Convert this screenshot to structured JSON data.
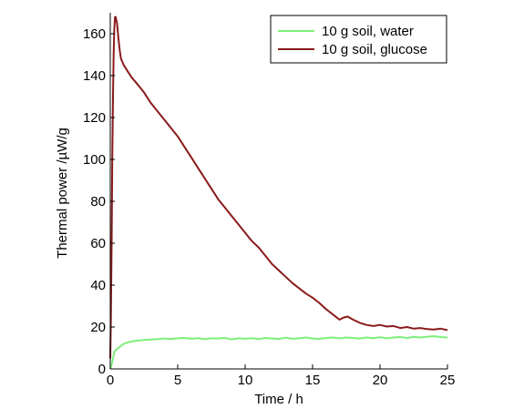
{
  "chart_data": {
    "type": "line",
    "xlabel": "Time / h",
    "ylabel": "Thermal power /µW/g",
    "xlim": [
      0,
      25
    ],
    "ylim": [
      0,
      170
    ],
    "xticks": [
      0,
      5,
      10,
      15,
      20,
      25
    ],
    "yticks": [
      0,
      20,
      40,
      60,
      80,
      100,
      120,
      140,
      160
    ],
    "xtick_labels": [
      "0",
      "5",
      "10",
      "15",
      "20",
      "25"
    ],
    "ytick_labels": [
      "0",
      "20",
      "40",
      "60",
      "80",
      "100",
      "120",
      "140",
      "160"
    ],
    "grid": false,
    "legend_position": "top-right",
    "legend": [
      "10 g soil, water",
      "10 g soil, glucose"
    ],
    "series": [
      {
        "name": "10 g soil, water",
        "color": "#7ef07a",
        "x": [
          0.0,
          0.1,
          0.2,
          0.3,
          0.4,
          0.6,
          0.8,
          1.0,
          1.5,
          2.0,
          2.5,
          3.0,
          3.5,
          4.0,
          4.5,
          5.0,
          5.5,
          6.0,
          6.5,
          7.0,
          7.5,
          8.0,
          8.5,
          9.0,
          9.5,
          10.0,
          10.5,
          11.0,
          11.5,
          12.0,
          12.5,
          13.0,
          13.5,
          14.0,
          14.5,
          15.0,
          15.5,
          16.0,
          16.5,
          17.0,
          17.5,
          18.0,
          18.5,
          19.0,
          19.5,
          20.0,
          20.5,
          21.0,
          21.5,
          22.0,
          22.5,
          23.0,
          23.5,
          24.0,
          24.5,
          25.0
        ],
        "y": [
          0,
          2,
          5,
          8,
          9,
          10,
          11,
          12,
          13,
          13.5,
          13.8,
          14,
          14.2,
          14.5,
          14.3,
          14.6,
          14.8,
          14.4,
          14.7,
          14.2,
          14.6,
          14.5,
          14.8,
          14.1,
          14.6,
          14.4,
          14.7,
          14.2,
          14.8,
          14.5,
          14.3,
          14.9,
          14.4,
          14.6,
          15.0,
          14.5,
          14.3,
          14.8,
          15.0,
          14.6,
          15.0,
          14.8,
          14.5,
          15.0,
          14.7,
          15.1,
          14.6,
          15.0,
          15.2,
          14.8,
          15.3,
          15.0,
          15.4,
          15.6,
          15.2,
          15.0
        ]
      },
      {
        "name": "10 g soil, glucose",
        "color": "#8b1a1a",
        "x": [
          0.0,
          0.05,
          0.1,
          0.15,
          0.2,
          0.25,
          0.3,
          0.35,
          0.4,
          0.5,
          0.6,
          0.7,
          0.8,
          1.0,
          1.3,
          1.6,
          2.0,
          2.5,
          3.0,
          3.5,
          4.0,
          4.5,
          5.0,
          5.5,
          6.0,
          6.5,
          7.0,
          7.5,
          8.0,
          8.5,
          9.0,
          9.5,
          10.0,
          10.5,
          11.0,
          11.5,
          12.0,
          12.5,
          13.0,
          13.5,
          14.0,
          14.5,
          15.0,
          15.5,
          16.0,
          16.5,
          17.0,
          17.3,
          17.6,
          18.0,
          18.5,
          19.0,
          19.5,
          20.0,
          20.5,
          21.0,
          21.5,
          22.0,
          22.5,
          23.0,
          23.5,
          24.0,
          24.5,
          25.0
        ],
        "y": [
          5,
          25,
          60,
          100,
          130,
          150,
          162,
          168,
          168,
          165,
          158,
          152,
          148,
          145,
          142,
          139,
          136,
          132,
          127,
          123,
          119,
          115,
          111,
          106,
          101,
          96,
          91,
          86,
          81,
          77,
          73,
          69,
          65,
          61,
          58,
          54,
          50,
          47,
          44,
          41,
          38.5,
          36,
          34,
          31.5,
          28.5,
          26,
          23.5,
          24.5,
          25,
          23.5,
          22,
          21,
          20.5,
          21,
          20.2,
          20.5,
          19.5,
          20,
          19.2,
          19.5,
          19,
          18.8,
          19.2,
          18.5
        ]
      }
    ]
  }
}
